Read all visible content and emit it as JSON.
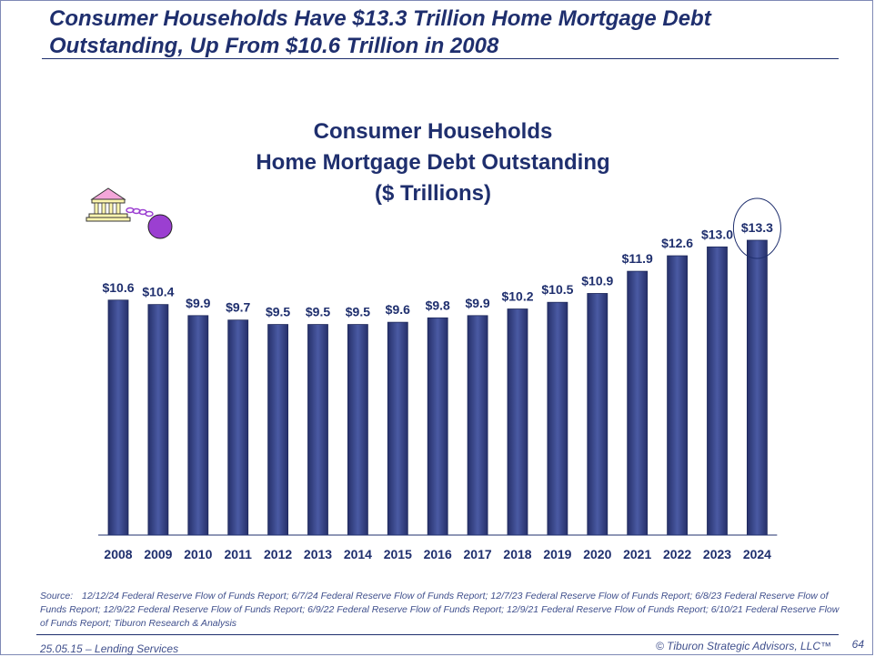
{
  "slide": {
    "headline": "Consumer Households Have $13.3 Trillion Home Mortgage Debt Outstanding, Up From $10.6 Trillion in 2008",
    "source_label": "Source:",
    "source_text": "12/12/24 Federal Reserve Flow of Funds Report; 6/7/24 Federal Reserve Flow of Funds Report; 12/7/23 Federal Reserve Flow of Funds Report; 6/8/23 Federal Reserve Flow of Funds Report; 12/9/22 Federal Reserve Flow of Funds Report; 6/9/22 Federal Reserve Flow of Funds Report; 12/9/21 Federal Reserve Flow of Funds Report; 6/10/21 Federal Reserve Flow of Funds Report; Tiburon Research & Analysis",
    "footer_left": "25.05.15 – Lending Services",
    "footer_right": "© Tiburon Strategic Advisors, LLC™",
    "page_number": "64"
  },
  "chart_data": {
    "type": "bar",
    "title": [
      "Consumer Households",
      "Home Mortgage Debt Outstanding",
      "($ Trillions)"
    ],
    "categories": [
      "2008",
      "2009",
      "2010",
      "2011",
      "2012",
      "2013",
      "2014",
      "2015",
      "2016",
      "2017",
      "2018",
      "2019",
      "2020",
      "2021",
      "2022",
      "2023",
      "2024"
    ],
    "values": [
      10.6,
      10.4,
      9.9,
      9.7,
      9.5,
      9.5,
      9.5,
      9.6,
      9.8,
      9.9,
      10.2,
      10.5,
      10.9,
      11.9,
      12.6,
      13.0,
      13.3
    ],
    "data_labels": [
      "$10.6",
      "$10.4",
      "$9.9",
      "$9.7",
      "$9.5",
      "$9.5",
      "$9.5",
      "$9.6",
      "$9.8",
      "$9.9",
      "$10.2",
      "$10.5",
      "$10.9",
      "$11.9",
      "$12.6",
      "$13.0",
      "$13.3"
    ],
    "ylim": [
      0,
      13.3
    ],
    "xlabel": "",
    "ylabel": "",
    "grid": false,
    "highlighted_category": "2024",
    "bar_color": "#2e3a78",
    "bar_highlight_color": "#4a5aa3",
    "icon": "bank-with-ball-and-chain-icon"
  }
}
